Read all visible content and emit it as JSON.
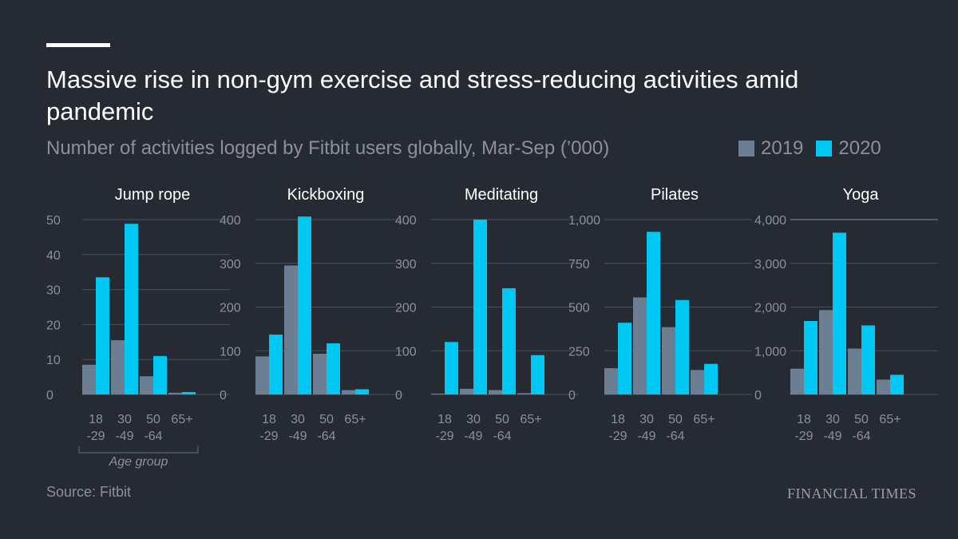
{
  "header": {
    "title": "Massive rise in non-gym exercise and stress-reducing activities amid pandemic",
    "subtitle": "Number of activities logged by Fitbit users globally, Mar-Sep (’000)"
  },
  "legend": [
    {
      "label": "2019",
      "color": "#6c7f92"
    },
    {
      "label": "2020",
      "color": "#00c8f5"
    }
  ],
  "footer": {
    "source": "Source: Fitbit",
    "brand": "FINANCIAL TIMES"
  },
  "chart_data": [
    {
      "type": "bar",
      "title": "Jump rope",
      "categories": [
        "18\n-29",
        "30\n-49",
        "50\n-64",
        "65+"
      ],
      "series": [
        {
          "name": "2019",
          "values": [
            8.5,
            15.5,
            5.2,
            0.5
          ]
        },
        {
          "name": "2020",
          "values": [
            33.5,
            48.8,
            11,
            0.7
          ]
        }
      ],
      "yticks": [
        0,
        10,
        20,
        30,
        40,
        50
      ],
      "ytick_labels": [
        "0",
        "10",
        "20",
        "30",
        "40",
        "50"
      ],
      "ylim": [
        0,
        50
      ],
      "xlabel": "Age group",
      "ylabel": ""
    },
    {
      "type": "bar",
      "title": "Kickboxing",
      "categories": [
        "18\n-29",
        "30\n-49",
        "50\n-64",
        "65+"
      ],
      "series": [
        {
          "name": "2019",
          "values": [
            87,
            295,
            93,
            10
          ]
        },
        {
          "name": "2020",
          "values": [
            137,
            407,
            117,
            12
          ]
        }
      ],
      "yticks": [
        0,
        100,
        200,
        300,
        400
      ],
      "ytick_labels": [
        "0",
        "100",
        "200",
        "300",
        "400"
      ],
      "ylim": [
        0,
        400
      ],
      "xlabel": "",
      "ylabel": ""
    },
    {
      "type": "bar",
      "title": "Meditating",
      "categories": [
        "18\n-29",
        "30\n-49",
        "50\n-64",
        "65+"
      ],
      "series": [
        {
          "name": "2019",
          "values": [
            2,
            13,
            10,
            3
          ]
        },
        {
          "name": "2020",
          "values": [
            120,
            400,
            243,
            90
          ]
        }
      ],
      "yticks": [
        0,
        100,
        200,
        300,
        400
      ],
      "ytick_labels": [
        "0",
        "100",
        "200",
        "300",
        "400"
      ],
      "ylim": [
        0,
        400
      ],
      "xlabel": "",
      "ylabel": ""
    },
    {
      "type": "bar",
      "title": "Pilates",
      "categories": [
        "18\n-29",
        "30\n-49",
        "50\n-64",
        "65+"
      ],
      "series": [
        {
          "name": "2019",
          "values": [
            150,
            555,
            385,
            140
          ]
        },
        {
          "name": "2020",
          "values": [
            410,
            930,
            540,
            175
          ]
        }
      ],
      "yticks": [
        0,
        250,
        500,
        750,
        1000
      ],
      "ytick_labels": [
        "0",
        "250",
        "500",
        "750",
        "1,000"
      ],
      "ylim": [
        0,
        1000
      ],
      "xlabel": "",
      "ylabel": ""
    },
    {
      "type": "bar",
      "title": "Yoga",
      "categories": [
        "18\n-29",
        "30\n-49",
        "50\n-64",
        "65+"
      ],
      "series": [
        {
          "name": "2019",
          "values": [
            590,
            1930,
            1050,
            340
          ]
        },
        {
          "name": "2020",
          "values": [
            1680,
            3700,
            1580,
            450
          ]
        }
      ],
      "yticks": [
        0,
        1000,
        2000,
        3000,
        4000
      ],
      "ytick_labels": [
        "0",
        "1,000",
        "2,000",
        "3,000",
        "4,000"
      ],
      "ylim": [
        0,
        4000
      ],
      "xlabel": "",
      "ylabel": ""
    }
  ]
}
